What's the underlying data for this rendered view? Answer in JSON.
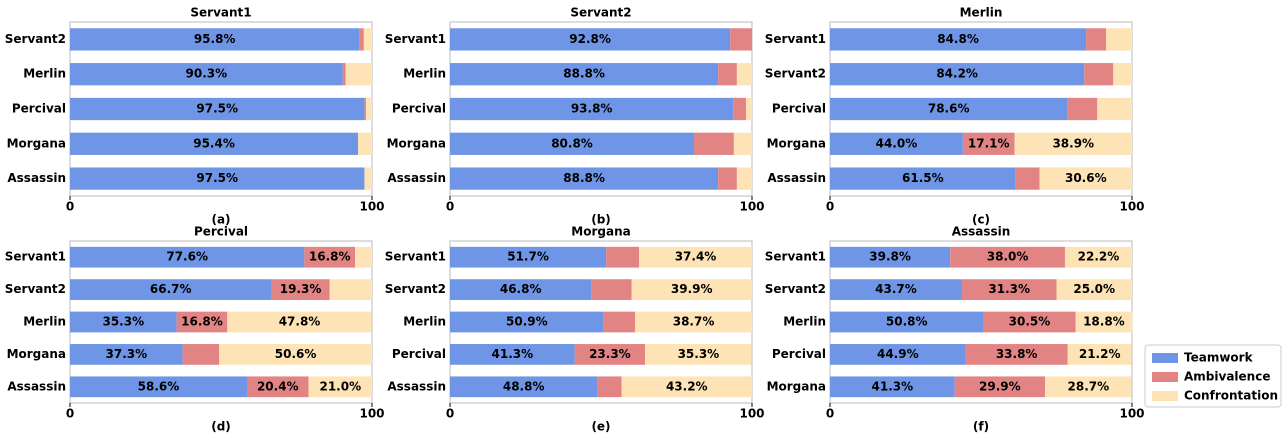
{
  "chart_data": [
    {
      "type": "bar",
      "orientation": "horizontal",
      "stacked": true,
      "title": "Servant1",
      "caption": "(a)",
      "categories": [
        "Servant2",
        "Merlin",
        "Percival",
        "Morgana",
        "Assassin"
      ],
      "series": [
        {
          "name": "Teamwork",
          "color": "#6f96e6",
          "values": [
            95.8,
            90.3,
            97.5,
            95.4,
            97.5
          ],
          "value_labels": [
            "95.8%",
            "90.3%",
            "97.5%",
            "95.4%",
            "97.5%"
          ]
        },
        {
          "name": "Ambivalence",
          "color": "#e38484",
          "values": [
            1.5,
            1.0,
            0.5,
            0,
            0
          ],
          "value_labels": [
            null,
            null,
            null,
            null,
            null
          ]
        },
        {
          "name": "Confrontation",
          "color": "#fde3b5",
          "values": [
            2.7,
            8.7,
            2.0,
            4.6,
            2.5
          ],
          "value_labels": [
            null,
            null,
            null,
            null,
            null
          ]
        }
      ],
      "xlim": [
        0,
        100
      ],
      "xticks": [
        0,
        100
      ]
    },
    {
      "type": "bar",
      "orientation": "horizontal",
      "stacked": true,
      "title": "Servant2",
      "caption": "(b)",
      "categories": [
        "Servant1",
        "Merlin",
        "Percival",
        "Morgana",
        "Assassin"
      ],
      "series": [
        {
          "name": "Teamwork",
          "color": "#6f96e6",
          "values": [
            92.8,
            88.8,
            93.8,
            80.8,
            88.8
          ],
          "value_labels": [
            "92.8%",
            "88.8%",
            "93.8%",
            "80.8%",
            "88.8%"
          ]
        },
        {
          "name": "Ambivalence",
          "color": "#e38484",
          "values": [
            7.2,
            6.2,
            4.2,
            13.2,
            6.2
          ],
          "value_labels": [
            null,
            null,
            null,
            null,
            null
          ]
        },
        {
          "name": "Confrontation",
          "color": "#fde3b5",
          "values": [
            0,
            5.0,
            2.0,
            6.0,
            5.0
          ],
          "value_labels": [
            null,
            null,
            null,
            null,
            null
          ]
        }
      ],
      "xlim": [
        0,
        100
      ],
      "xticks": [
        0,
        100
      ]
    },
    {
      "type": "bar",
      "orientation": "horizontal",
      "stacked": true,
      "title": "Merlin",
      "caption": "(c)",
      "categories": [
        "Servant1",
        "Servant2",
        "Percival",
        "Morgana",
        "Assassin"
      ],
      "series": [
        {
          "name": "Teamwork",
          "color": "#6f96e6",
          "values": [
            84.8,
            84.2,
            78.6,
            44.0,
            61.5
          ],
          "value_labels": [
            "84.8%",
            "84.2%",
            "78.6%",
            "44.0%",
            "61.5%"
          ]
        },
        {
          "name": "Ambivalence",
          "color": "#e38484",
          "values": [
            6.6,
            9.6,
            9.9,
            17.1,
            7.9
          ],
          "value_labels": [
            null,
            null,
            null,
            "17.1%",
            null
          ]
        },
        {
          "name": "Confrontation",
          "color": "#fde3b5",
          "values": [
            8.6,
            6.2,
            11.5,
            38.9,
            30.6
          ],
          "value_labels": [
            null,
            null,
            null,
            "38.9%",
            "30.6%"
          ]
        }
      ],
      "xlim": [
        0,
        100
      ],
      "xticks": [
        0,
        100
      ]
    },
    {
      "type": "bar",
      "orientation": "horizontal",
      "stacked": true,
      "title": "Percival",
      "caption": "(d)",
      "categories": [
        "Servant1",
        "Servant2",
        "Merlin",
        "Morgana",
        "Assassin"
      ],
      "series": [
        {
          "name": "Teamwork",
          "color": "#6f96e6",
          "values": [
            77.6,
            66.7,
            35.3,
            37.3,
            58.6
          ],
          "value_labels": [
            "77.6%",
            "66.7%",
            "35.3%",
            "37.3%",
            "58.6%"
          ]
        },
        {
          "name": "Ambivalence",
          "color": "#e38484",
          "values": [
            16.8,
            19.3,
            16.8,
            12.1,
            20.4
          ],
          "value_labels": [
            "16.8%",
            "19.3%",
            "16.8%",
            null,
            "20.4%"
          ]
        },
        {
          "name": "Confrontation",
          "color": "#fde3b5",
          "values": [
            5.6,
            14.0,
            47.8,
            50.6,
            21.0
          ],
          "value_labels": [
            null,
            null,
            "47.8%",
            "50.6%",
            "21.0%"
          ]
        }
      ],
      "xlim": [
        0,
        100
      ],
      "xticks": [
        0,
        100
      ]
    },
    {
      "type": "bar",
      "orientation": "horizontal",
      "stacked": true,
      "title": "Morgana",
      "caption": "(e)",
      "categories": [
        "Servant1",
        "Servant2",
        "Merlin",
        "Percival",
        "Assassin"
      ],
      "series": [
        {
          "name": "Teamwork",
          "color": "#6f96e6",
          "values": [
            51.7,
            46.8,
            50.9,
            41.3,
            48.8
          ],
          "value_labels": [
            "51.7%",
            "46.8%",
            "50.9%",
            "41.3%",
            "48.8%"
          ]
        },
        {
          "name": "Ambivalence",
          "color": "#e38484",
          "values": [
            10.9,
            13.3,
            10.4,
            23.3,
            8.0
          ],
          "value_labels": [
            null,
            null,
            null,
            "23.3%",
            null
          ]
        },
        {
          "name": "Confrontation",
          "color": "#fde3b5",
          "values": [
            37.4,
            39.9,
            38.7,
            35.3,
            43.2
          ],
          "value_labels": [
            "37.4%",
            "39.9%",
            "38.7%",
            "35.3%",
            "43.2%"
          ]
        }
      ],
      "xlim": [
        0,
        100
      ],
      "xticks": [
        0,
        100
      ]
    },
    {
      "type": "bar",
      "orientation": "horizontal",
      "stacked": true,
      "title": "Assassin",
      "caption": "(f)",
      "categories": [
        "Servant1",
        "Servant2",
        "Merlin",
        "Percival",
        "Morgana"
      ],
      "series": [
        {
          "name": "Teamwork",
          "color": "#6f96e6",
          "values": [
            39.8,
            43.7,
            50.8,
            44.9,
            41.3
          ],
          "value_labels": [
            "39.8%",
            "43.7%",
            "50.8%",
            "44.9%",
            "41.3%"
          ]
        },
        {
          "name": "Ambivalence",
          "color": "#e38484",
          "values": [
            38.0,
            31.3,
            30.5,
            33.8,
            29.9
          ],
          "value_labels": [
            "38.0%",
            "31.3%",
            "30.5%",
            "33.8%",
            "29.9%"
          ]
        },
        {
          "name": "Confrontation",
          "color": "#fde3b5",
          "values": [
            22.2,
            25.0,
            18.8,
            21.2,
            28.7
          ],
          "value_labels": [
            "22.2%",
            "25.0%",
            "18.8%",
            "21.2%",
            "28.7%"
          ]
        }
      ],
      "xlim": [
        0,
        100
      ],
      "xticks": [
        0,
        100
      ]
    }
  ]
}
